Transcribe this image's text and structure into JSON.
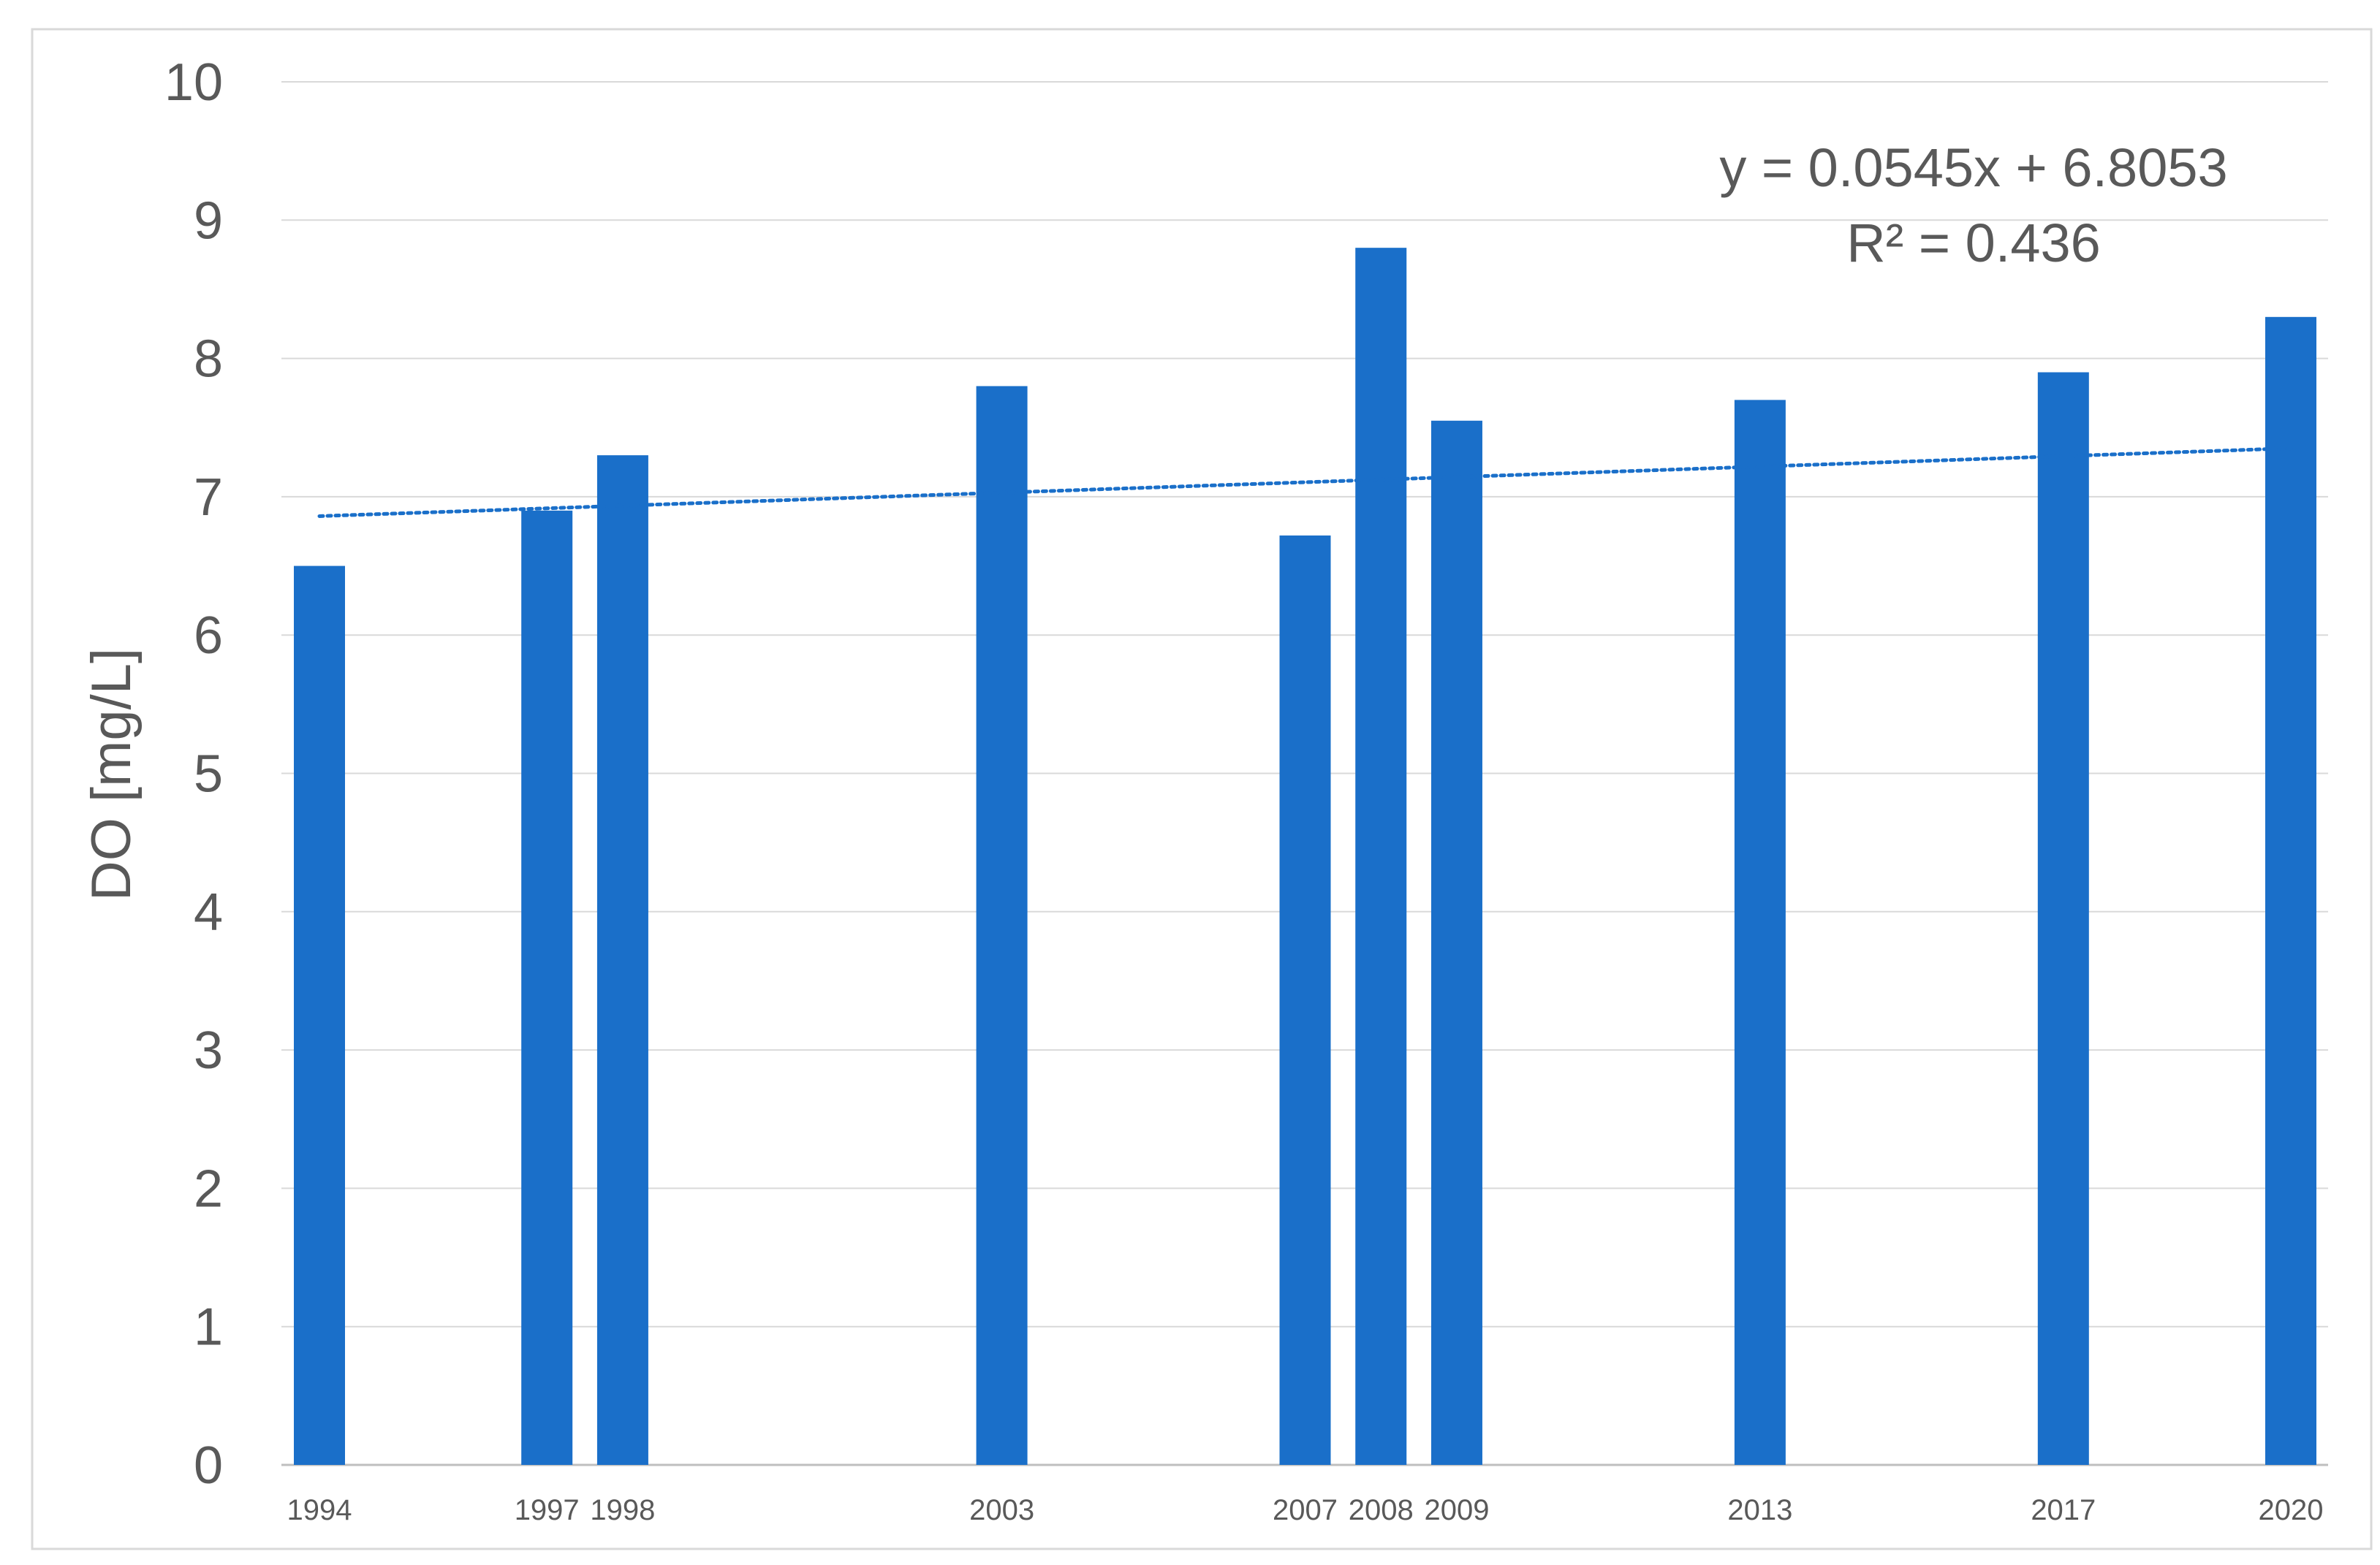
{
  "chart_data": {
    "type": "bar",
    "title": "",
    "xlabel": "",
    "ylabel": "DO [mg/L]",
    "ylim": [
      0,
      10
    ],
    "yticks": [
      "0",
      "1",
      "2",
      "3",
      "4",
      "5",
      "6",
      "7",
      "8",
      "9",
      "10"
    ],
    "x_axis": "year (bars placed on a continuous year scale)",
    "categories": [
      "1994",
      "1997",
      "1998",
      "2003",
      "2007",
      "2008",
      "2009",
      "2013",
      "2017",
      "2020"
    ],
    "x": [
      1994,
      1997,
      1998,
      2003,
      2007,
      2008,
      2009,
      2013,
      2017,
      2020
    ],
    "series": [
      {
        "values": [
          6.5,
          6.9,
          7.3,
          7.8,
          6.72,
          8.8,
          7.55,
          7.7,
          7.9,
          8.3
        ],
        "color": "#1a6fc9"
      }
    ],
    "trendline": {
      "type": "linear",
      "slope": 0.0545,
      "intercept": 6.8053,
      "color": "#1a6fc9",
      "style": "dotted",
      "equation_label": "y = 0.0545x + 6.8053",
      "r2_label": "R² = 0.436"
    },
    "grid": true,
    "legend": "none"
  }
}
